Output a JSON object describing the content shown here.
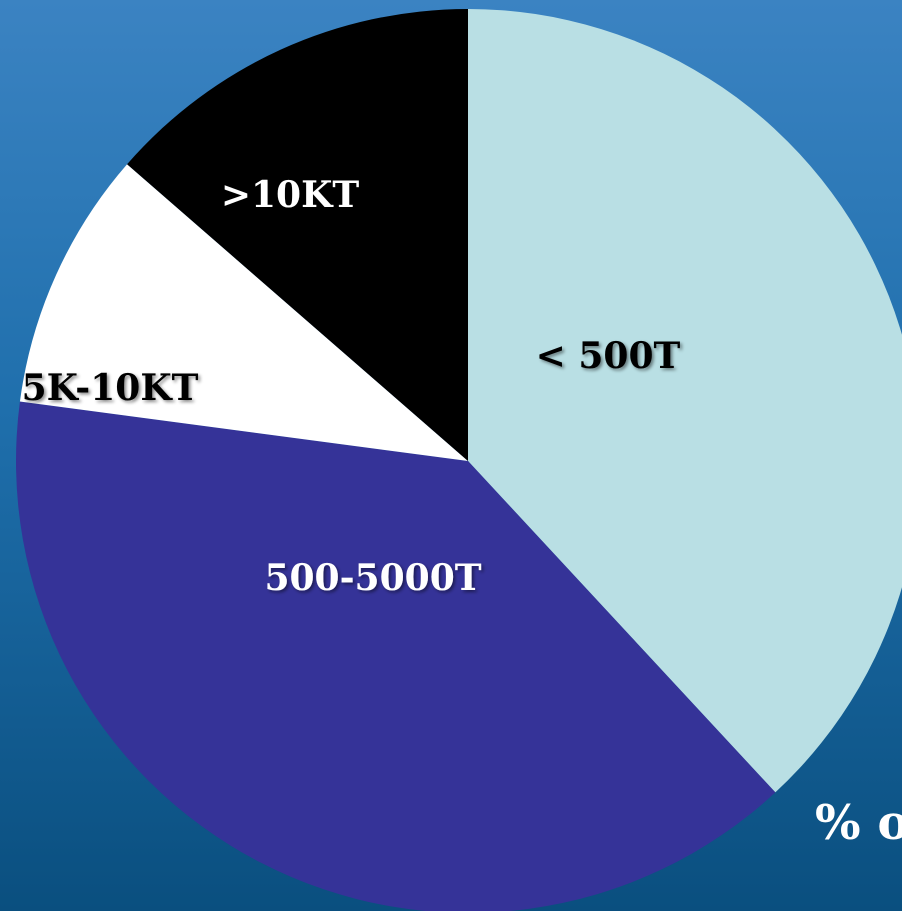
{
  "chart_data": {
    "type": "pie",
    "categories": [
      "< 500T",
      "500-5000T",
      "5K-10KT",
      ">10KT"
    ],
    "values": [
      38.1,
      39.0,
      9.3,
      13.6
    ],
    "title": "",
    "start": "12 o'clock",
    "direction": "clockwise",
    "colors": [
      "#b9dfe4",
      "#353398",
      "#ffffff",
      "#000000"
    ],
    "label_colors": [
      "#000000",
      "#ffffff",
      "#000000",
      "#ffffff"
    ]
  },
  "footer_text": "% o"
}
